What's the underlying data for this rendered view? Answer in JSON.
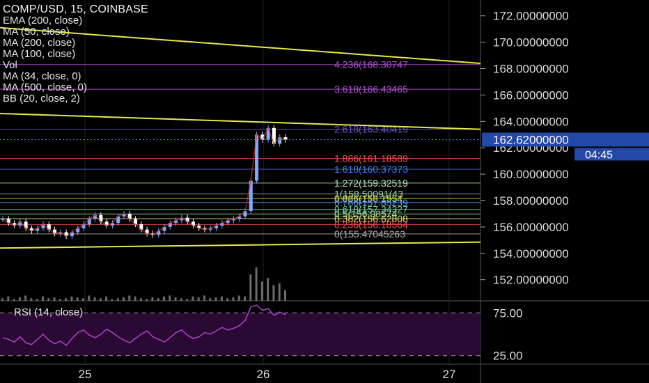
{
  "header": {
    "symbol_line": "COMP/USD, 15, COINBASE",
    "indicators": [
      "EMA (200, close)",
      "MA (50, close)",
      "MA (200, close)",
      "MA (100, close)",
      "Vol",
      "MA (34, close, 0)",
      "MA (500, close, 0)",
      "BB (20, close, 2)"
    ]
  },
  "colors": {
    "background": "#000000",
    "trendline": "#e8e84a",
    "price_tag_bg": "#2448a8",
    "rsi_line": "#b040d0",
    "rsi_fill": "#2a0a33",
    "up_candle": "#7fa8ff",
    "down_candle": "#ffffff"
  },
  "chart_data": [
    {
      "type": "line",
      "title": "COMP/USD, 15, COINBASE",
      "x_ticks": [
        "25",
        "26",
        "27"
      ],
      "y_ticks": [
        "172.00000000",
        "170.00000000",
        "168.00000000",
        "166.00000000",
        "164.00000000",
        "162.00000000",
        "160.00000000",
        "158.00000000",
        "156.00000000",
        "154.00000000",
        "152.00000000"
      ],
      "ylim": [
        150.4,
        173.2
      ],
      "current_price": "162.62000000",
      "countdown": "04:45",
      "fib_levels": [
        {
          "label": "4.236(168.30747",
          "value": 168.30747,
          "color": "#b44fd8"
        },
        {
          "label": "3.618(166.43465",
          "value": 166.43465,
          "color": "#b44fd8"
        },
        {
          "label": "2.618(163.40419",
          "value": 163.40419,
          "color": "#6a5acd"
        },
        {
          "label": "1.886(161.18589",
          "value": 161.18589,
          "color": "#ff4a4a"
        },
        {
          "label": "1.618(160.37373",
          "value": 160.37373,
          "color": "#4a78ff"
        },
        {
          "label": "1.272(159.32519",
          "value": 159.32519,
          "color": "#b8e0b8"
        },
        {
          "label": "1(158.50091(43",
          "value": 158.5009,
          "color": "#9ad19a"
        },
        {
          "label": "0.886(158.1554",
          "value": 158.1554,
          "color": "#e0e04a"
        },
        {
          "label": "0.786(157.85239",
          "value": 157.85239,
          "color": "#5aa0ff"
        },
        {
          "label": "0.618(157.34327",
          "value": 157.34327,
          "color": "#6ad0a0"
        },
        {
          "label": "0.5(156.98574",
          "value": 156.98574,
          "color": "#a0e0a0"
        },
        {
          "label": "0.382(156.62808",
          "value": 156.62808,
          "color": "#e0e070"
        },
        {
          "label": "0.236(156.18564",
          "value": 156.18564,
          "color": "#ff5050"
        },
        {
          "label": "0(155.47045263",
          "value": 155.47045263,
          "color": "#b0b0b0"
        }
      ],
      "trendlines": [
        {
          "name": "upper",
          "from": [
            0,
            171.1
          ],
          "to": [
            1,
            168.4
          ]
        },
        {
          "name": "middle",
          "from": [
            0,
            164.6
          ],
          "to": [
            1,
            163.4
          ]
        },
        {
          "name": "lower",
          "from": [
            0,
            154.4
          ],
          "to": [
            1,
            154.85
          ]
        }
      ],
      "price_series": [
        156.6,
        156.3,
        156.1,
        156.4,
        155.9,
        155.7,
        155.9,
        156.2,
        155.8,
        155.5,
        155.6,
        155.3,
        155.6,
        155.9,
        156.2,
        156.6,
        156.9,
        156.4,
        156.1,
        156.3,
        156.8,
        157.0,
        156.6,
        156.2,
        155.8,
        155.5,
        155.4,
        155.7,
        156.0,
        156.3,
        156.5,
        156.7,
        156.4,
        156.1,
        155.9,
        155.8,
        155.9,
        156.1,
        156.3,
        156.5,
        156.6,
        156.8,
        157.2,
        159.5,
        163.0,
        162.6,
        163.5,
        162.3,
        162.8,
        162.6
      ],
      "rsi": {
        "title": "RSI (14, close)",
        "levels": [
          "75.00",
          "25.00"
        ],
        "ylim": [
          15,
          85
        ],
        "values": [
          46,
          44,
          41,
          47,
          40,
          38,
          44,
          50,
          43,
          39,
          42,
          37,
          45,
          52,
          55,
          49,
          46,
          50,
          56,
          52,
          47,
          43,
          40,
          45,
          50,
          54,
          47,
          44,
          41,
          46,
          52,
          55,
          49,
          45,
          47,
          52,
          50,
          54,
          58,
          55,
          57,
          60,
          66,
          82,
          84,
          78,
          80,
          72,
          76,
          73
        ]
      },
      "volume": [
        3,
        5,
        2,
        4,
        6,
        3,
        2,
        5,
        3,
        4,
        2,
        3,
        5,
        4,
        3,
        6,
        4,
        3,
        5,
        2,
        3,
        4,
        6,
        5,
        3,
        2,
        4,
        3,
        5,
        6,
        4,
        3,
        2,
        5,
        4,
        6,
        3,
        4,
        5,
        3,
        4,
        6,
        5,
        30,
        38,
        22,
        26,
        18,
        20,
        12
      ]
    }
  ]
}
